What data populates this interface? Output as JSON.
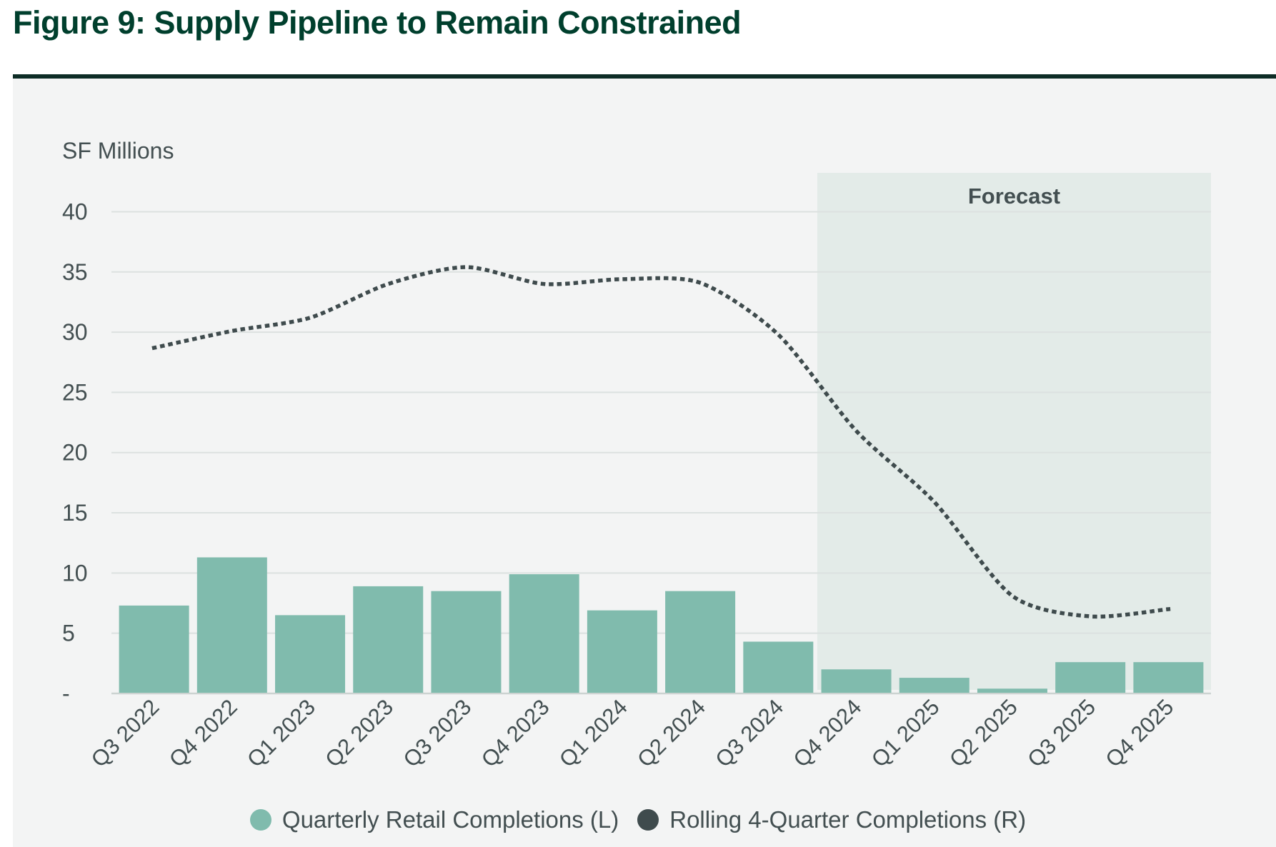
{
  "figure": {
    "title": "Figure 9: Supply Pipeline to Remain Constrained"
  },
  "legend": [
    {
      "label": "Quarterly Retail Completions (L)",
      "color": "#80bbad",
      "marker": "dot"
    },
    {
      "label": "Rolling 4-Quarter Completions (R)",
      "color": "#3f4b4d",
      "marker": "dot"
    }
  ],
  "colors": {
    "title_text": "#003f2d",
    "top_rule": "#0e2d26",
    "page_bg": "#ffffff",
    "panel_bg": "#f3f4f4",
    "bar": "#80bbad",
    "line": "#3f4b4d",
    "forecast_bg": "#e3ebe8",
    "gridline": "#dce1e0",
    "baseline": "#ccd3d1",
    "tick_text": "#434f51"
  },
  "chart_data": {
    "type": "bar+line",
    "title": "Figure 9: Supply Pipeline to Remain Constrained",
    "ylabel": "SF Millions",
    "xlabel": "",
    "ylim": [
      0,
      43
    ],
    "yticks": [
      0,
      5,
      10,
      15,
      20,
      25,
      30,
      35,
      40
    ],
    "ytick_labels": [
      "-",
      "5",
      "10",
      "15",
      "20",
      "25",
      "30",
      "35",
      "40"
    ],
    "grid": "horizontal",
    "legend_position": "bottom-center",
    "categories": [
      "Q3 2022",
      "Q4 2022",
      "Q1 2023",
      "Q2 2023",
      "Q3 2023",
      "Q4 2023",
      "Q1 2024",
      "Q2 2024",
      "Q3 2024",
      "Q4 2024",
      "Q1 2025",
      "Q2 2025",
      "Q3 2025",
      "Q4 2025"
    ],
    "series": [
      {
        "name": "Quarterly Retail Completions (L)",
        "type": "bar",
        "axis": "left",
        "color": "#80bbad",
        "values": [
          7.3,
          11.3,
          6.5,
          8.9,
          8.5,
          9.9,
          6.9,
          8.5,
          4.3,
          2.0,
          1.3,
          0.4,
          2.6,
          2.6
        ]
      },
      {
        "name": "Rolling 4-Quarter Completions (R)",
        "type": "line",
        "line_style": "dotted",
        "axis": "right",
        "axis_note": "right axis not labeled; values read against left-axis scale as plotted",
        "color": "#3f4b4d",
        "values": [
          28.7,
          30.1,
          31.2,
          34.0,
          35.4,
          34.0,
          34.4,
          34.1,
          29.8,
          21.8,
          15.9,
          8.1,
          6.4,
          7.0
        ]
      }
    ],
    "forecast": {
      "label": "Forecast",
      "starts_at_category": "Q4 2024"
    }
  }
}
